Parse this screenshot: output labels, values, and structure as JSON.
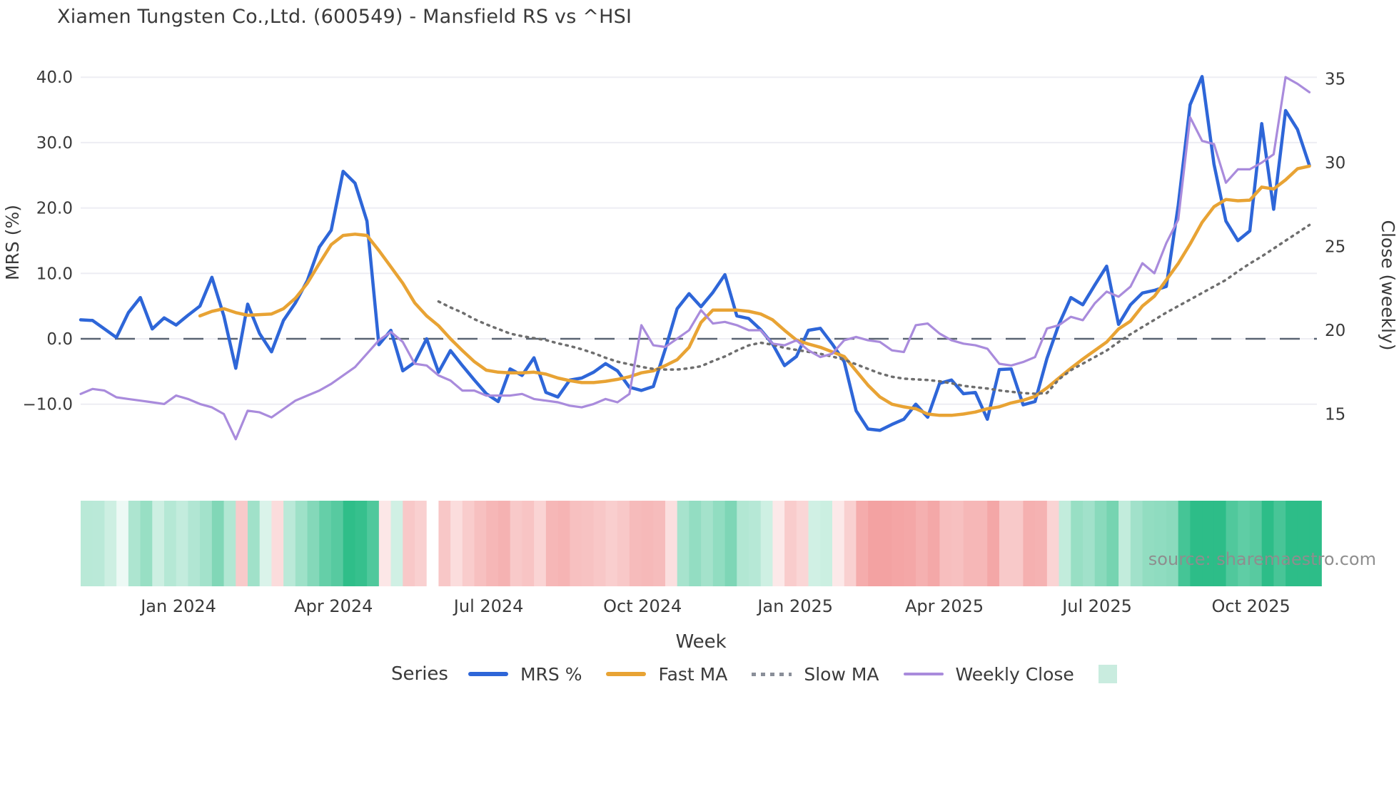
{
  "title": "Xiamen Tungsten Co.,Ltd. (600549) - Mansfield RS vs ^HSI",
  "source_text": "source: sharemaestro.com",
  "colors": {
    "mrs_blue": "#2e66d8",
    "fast_ma_orange": "#e8a334",
    "slow_ma_gray": "#6e6e6e",
    "weekly_close_purple": "#a98bdc",
    "zero_dash": "#5a6472",
    "gridline": "#ededf3",
    "heat_green_max": "#2dbd88",
    "heat_red_max": "#f29898",
    "heat_legend_swatch": "#c9ecdf",
    "text_dark": "#3a3a3a",
    "text_source": "#8e8e8e"
  },
  "legend": {
    "series_label": "Series",
    "items": [
      {
        "label": "MRS %",
        "swatch": "line",
        "color": "#2e66d8"
      },
      {
        "label": "Fast MA",
        "swatch": "line",
        "color": "#e8a334"
      },
      {
        "label": "Slow MA",
        "swatch": "dotted",
        "color": "#8a8f99"
      },
      {
        "label": "Weekly Close",
        "swatch": "line-thin",
        "color": "#a98bdc"
      },
      {
        "label": "",
        "swatch": "square",
        "color": "#c9ecdf"
      }
    ]
  },
  "chart_data": {
    "type": "line",
    "title": "Xiamen Tungsten Co.,Ltd. (600549) - Mansfield RS vs ^HSI",
    "xlabel": "Week",
    "ylabel_left": "MRS (%)",
    "ylabel_right": "Close (weekly)",
    "grid": true,
    "legend_position": "bottom",
    "left_axis": {
      "ticks": [
        40,
        30,
        20,
        10,
        0,
        -10
      ],
      "tick_labels": [
        "40.0",
        "30.0",
        "20.0",
        "10.0",
        "0.0",
        "−10.0"
      ],
      "range_note": "zero line drawn as dark dashed rule"
    },
    "right_axis": {
      "ticks": [
        35,
        30,
        25,
        20,
        15
      ],
      "tick_labels": [
        "35",
        "30",
        "25",
        "20",
        "15"
      ]
    },
    "x_ticks": [
      {
        "label": "Jan 2024",
        "week": 8.2
      },
      {
        "label": "Apr 2024",
        "week": 21.2
      },
      {
        "label": "Jul 2024",
        "week": 34.2
      },
      {
        "label": "Oct 2024",
        "week": 47.1
      },
      {
        "label": "Jan 2025",
        "week": 59.9
      },
      {
        "label": "Apr 2025",
        "week": 72.4
      },
      {
        "label": "Jul 2025",
        "week": 85.2
      },
      {
        "label": "Oct 2025",
        "week": 98.1
      }
    ],
    "weeks": 104,
    "series": [
      {
        "name": "MRS %",
        "axis": "left",
        "color": "#2e66d8",
        "width": 4.5,
        "style": "solid",
        "values": [
          2.9,
          2.8,
          1.5,
          0.2,
          4.0,
          6.3,
          1.5,
          3.2,
          2.1,
          3.6,
          5.0,
          9.4,
          3.5,
          -4.5,
          5.3,
          0.8,
          -2.0,
          2.8,
          5.5,
          8.9,
          14.0,
          16.6,
          25.6,
          23.8,
          18.0,
          -0.9,
          1.3,
          -4.9,
          -3.6,
          0.0,
          -5.1,
          -1.8,
          -4.1,
          -6.3,
          -8.4,
          -9.6,
          -4.6,
          -5.6,
          -2.9,
          -8.2,
          -8.9,
          -6.3,
          -6.0,
          -5.1,
          -3.8,
          -4.9,
          -7.4,
          -7.9,
          -7.3,
          -1.6,
          4.6,
          6.9,
          4.9,
          7.1,
          9.8,
          3.5,
          3.1,
          1.4,
          -0.8,
          -4.1,
          -2.7,
          1.3,
          1.6,
          -0.8,
          -3.5,
          -11.0,
          -13.8,
          -14.0,
          -13.1,
          -12.3,
          -10.0,
          -12.0,
          -6.8,
          -6.3,
          -8.4,
          -8.2,
          -12.3,
          -4.7,
          -4.6,
          -10.1,
          -9.6,
          -3.0,
          2.2,
          6.3,
          5.2,
          8.2,
          11.1,
          2.2,
          5.2,
          7.0,
          7.4,
          8.0,
          20.4,
          35.8,
          40.1,
          26.7,
          18.0,
          15.0,
          16.5,
          32.9,
          19.8,
          34.9,
          32.0,
          26.5
        ]
      },
      {
        "name": "Fast MA",
        "axis": "left",
        "color": "#e8a334",
        "width": 4.5,
        "style": "solid",
        "values": [
          null,
          null,
          null,
          null,
          null,
          null,
          null,
          null,
          null,
          null,
          3.5,
          4.2,
          4.6,
          4.0,
          3.6,
          3.7,
          3.8,
          4.6,
          6.2,
          8.5,
          11.5,
          14.4,
          15.8,
          16.0,
          15.8,
          13.5,
          11.0,
          8.5,
          5.5,
          3.5,
          2.0,
          0.0,
          -1.8,
          -3.5,
          -4.8,
          -5.1,
          -5.2,
          -5.2,
          -5.1,
          -5.4,
          -6.0,
          -6.4,
          -6.7,
          -6.7,
          -6.5,
          -6.2,
          -5.8,
          -5.2,
          -4.9,
          -4.1,
          -3.2,
          -1.3,
          2.5,
          4.4,
          4.4,
          4.4,
          4.2,
          3.8,
          2.9,
          1.3,
          -0.2,
          -0.8,
          -1.3,
          -2.0,
          -2.7,
          -4.9,
          -7.1,
          -8.9,
          -10.0,
          -10.4,
          -10.7,
          -11.5,
          -11.7,
          -11.7,
          -11.5,
          -11.2,
          -10.7,
          -10.4,
          -9.8,
          -9.4,
          -8.8,
          -7.5,
          -6.0,
          -4.5,
          -3.1,
          -1.8,
          -0.5,
          1.5,
          2.7,
          5.0,
          6.5,
          9.0,
          11.5,
          14.5,
          17.8,
          20.2,
          21.3,
          21.1,
          21.2,
          23.2,
          22.9,
          24.3,
          26.0,
          26.4
        ]
      },
      {
        "name": "Slow MA",
        "axis": "left",
        "color": "#6e6e6e",
        "width": 3.5,
        "style": "dotted",
        "values": [
          null,
          null,
          null,
          null,
          null,
          null,
          null,
          null,
          null,
          null,
          null,
          null,
          null,
          null,
          null,
          null,
          null,
          null,
          null,
          null,
          null,
          null,
          null,
          null,
          null,
          null,
          null,
          null,
          null,
          null,
          5.7,
          4.8,
          4.0,
          3.0,
          2.2,
          1.5,
          0.8,
          0.4,
          0.1,
          -0.2,
          -0.7,
          -1.1,
          -1.6,
          -2.2,
          -2.9,
          -3.5,
          -3.9,
          -4.3,
          -4.6,
          -4.7,
          -4.7,
          -4.5,
          -4.2,
          -3.4,
          -2.7,
          -1.8,
          -1.0,
          -0.6,
          -0.9,
          -1.4,
          -1.7,
          -2.0,
          -2.3,
          -2.7,
          -3.2,
          -3.9,
          -4.6,
          -5.3,
          -5.8,
          -6.1,
          -6.2,
          -6.3,
          -6.5,
          -6.8,
          -7.2,
          -7.4,
          -7.6,
          -7.9,
          -8.1,
          -8.3,
          -8.4,
          -8.3,
          -6.2,
          -4.8,
          -3.8,
          -2.8,
          -1.8,
          -0.5,
          0.7,
          1.8,
          2.9,
          4.0,
          5.0,
          6.0,
          7.0,
          8.0,
          9.0,
          10.3,
          11.5,
          12.6,
          13.8,
          15.0,
          16.2,
          17.4
        ]
      },
      {
        "name": "Weekly Close",
        "axis": "right",
        "color": "#a98bdc",
        "width": 3.2,
        "style": "solid",
        "values": [
          16.2,
          16.5,
          16.4,
          16.0,
          15.9,
          15.8,
          15.7,
          15.6,
          16.1,
          15.9,
          15.6,
          15.4,
          15.0,
          13.5,
          15.2,
          15.1,
          14.8,
          15.3,
          15.8,
          16.1,
          16.4,
          16.8,
          17.3,
          17.8,
          18.6,
          19.4,
          19.9,
          19.3,
          18.0,
          17.9,
          17.3,
          17.0,
          16.4,
          16.4,
          16.1,
          16.1,
          16.1,
          16.2,
          15.9,
          15.8,
          15.7,
          15.5,
          15.4,
          15.6,
          15.9,
          15.7,
          16.2,
          20.3,
          19.1,
          19.0,
          19.5,
          20.0,
          21.2,
          20.4,
          20.5,
          20.3,
          20.0,
          20.0,
          19.2,
          19.1,
          19.4,
          18.8,
          18.4,
          18.6,
          19.4,
          19.6,
          19.4,
          19.3,
          18.8,
          18.7,
          20.3,
          20.4,
          19.8,
          19.4,
          19.2,
          19.1,
          18.9,
          18.0,
          17.9,
          18.1,
          18.4,
          20.1,
          20.3,
          20.8,
          20.6,
          21.6,
          22.3,
          22.0,
          22.6,
          24.0,
          23.4,
          25.2,
          26.6,
          32.7,
          31.3,
          31.1,
          28.8,
          29.6,
          29.6,
          30.0,
          30.5,
          35.1,
          34.7,
          34.2
        ]
      }
    ],
    "heatmap": {
      "note": "weekly strip below plot; color derived from MRS % value per week: green for positive, red/pink for negative, intensity proportional to magnitude, near-white when close to zero",
      "source_series": "MRS %",
      "green_max": "#2dbd88",
      "red_max": "#f29898"
    }
  }
}
